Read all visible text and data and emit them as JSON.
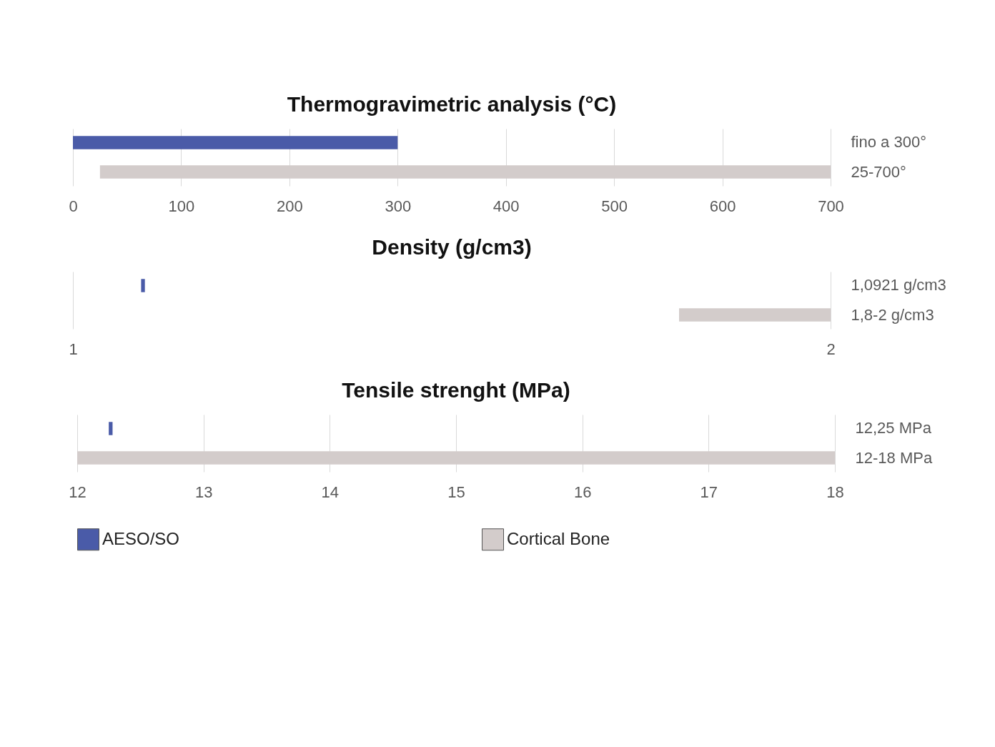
{
  "chart_data": [
    {
      "type": "bar",
      "orientation": "horizontal",
      "title": "Thermogravimetric analysis (°C)",
      "categories": [
        "fino a 300°",
        "25-700°"
      ],
      "xlim": [
        0,
        700
      ],
      "xticks": [
        0,
        100,
        200,
        300,
        400,
        500,
        600,
        700
      ],
      "grid": "x",
      "legend": false,
      "series": [
        {
          "color": "#4a5ba8",
          "values": [
            300,
            null
          ],
          "base": [
            0,
            null
          ]
        },
        {
          "color": "#d3cccb",
          "values": [
            null,
            675
          ],
          "base": [
            null,
            25
          ]
        }
      ]
    },
    {
      "type": "bar",
      "orientation": "horizontal",
      "title": "Density (g/cm3)",
      "categories": [
        "1,0921 g/cm3",
        "1,8-2 g/cm3"
      ],
      "xlim": [
        1,
        2
      ],
      "xticks": [
        1,
        2
      ],
      "grid": "x",
      "legend": false,
      "series": [
        {
          "color": "#4a5ba8",
          "values": [
            0.005,
            null
          ],
          "base": [
            1.09,
            null
          ]
        },
        {
          "color": "#d3cccb",
          "values": [
            null,
            0.2
          ],
          "base": [
            null,
            1.8
          ]
        }
      ]
    },
    {
      "type": "bar",
      "orientation": "horizontal",
      "title": "Tensile strenght (MPa)",
      "categories": [
        "12,25 MPa",
        "12-18 MPa"
      ],
      "xlim": [
        12,
        18
      ],
      "xticks": [
        12,
        13,
        14,
        15,
        16,
        17,
        18
      ],
      "grid": "x",
      "legend": "bottom",
      "series": [
        {
          "name": "AESO/SO",
          "color": "#4a5ba8",
          "values": [
            0.03,
            null
          ],
          "base": [
            12.25,
            null
          ]
        },
        {
          "name": "Cortical Bone",
          "color": "#d3cccb",
          "values": [
            null,
            6
          ],
          "base": [
            null,
            12
          ]
        }
      ]
    }
  ]
}
